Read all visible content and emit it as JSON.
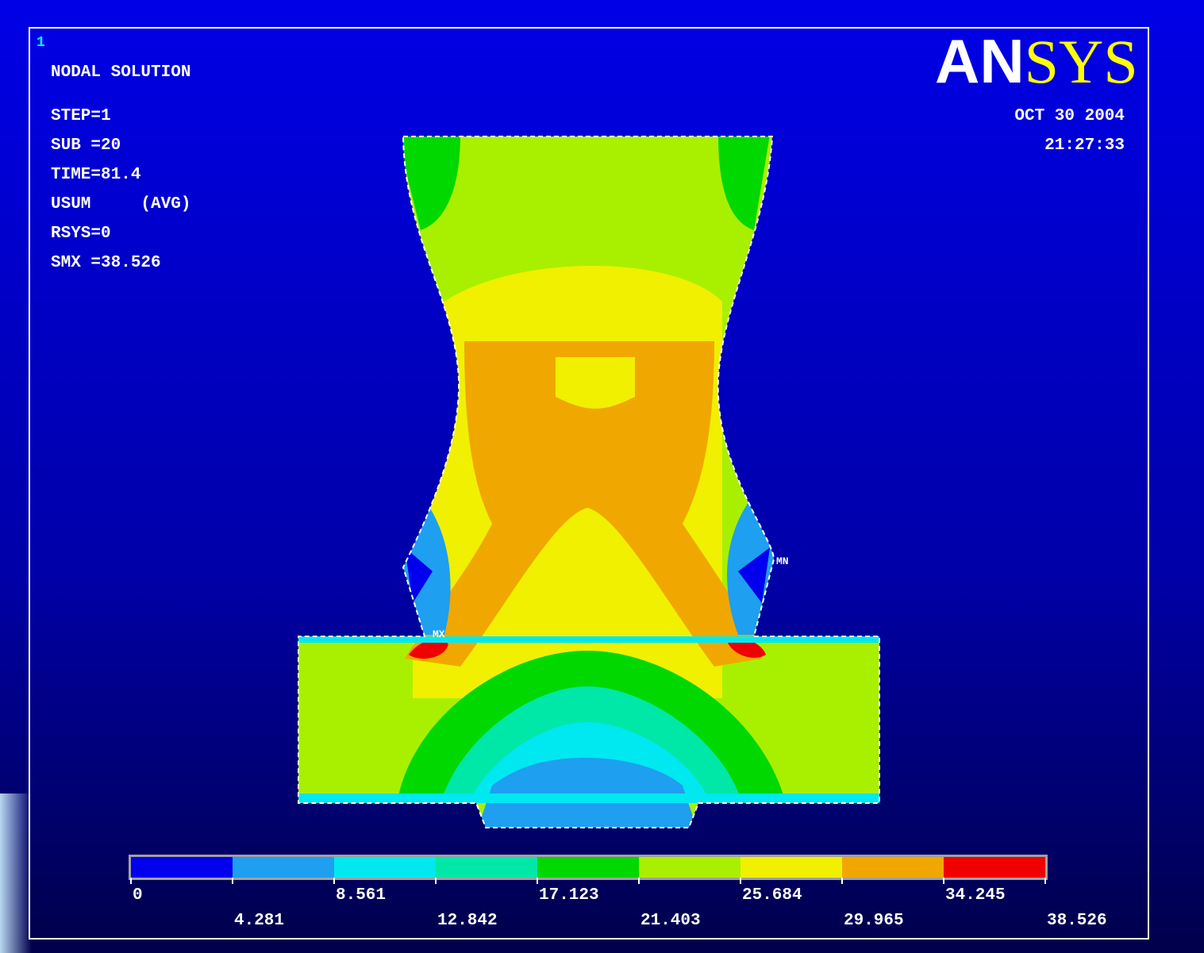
{
  "window_number": "1",
  "header": {
    "title": "NODAL SOLUTION",
    "lines": [
      "STEP=1",
      "SUB =20",
      "TIME=81.4",
      "USUM     (AVG)",
      "RSYS=0",
      "SMX =38.526"
    ]
  },
  "logo": {
    "white": "AN",
    "yellow": "SYS"
  },
  "date": "OCT 30 2004",
  "time": "21:27:33",
  "markers": {
    "max": "MX",
    "min": "MN"
  },
  "legend": {
    "colors": [
      "#0000ee",
      "#1e9ff0",
      "#00e8f0",
      "#00e8a8",
      "#00d800",
      "#a8f000",
      "#f0f000",
      "#f0a800",
      "#f00000"
    ],
    "labels": [
      "0",
      "4.281",
      "8.561",
      "12.842",
      "17.123",
      "21.403",
      "25.684",
      "29.965",
      "34.245",
      "38.526"
    ]
  }
}
